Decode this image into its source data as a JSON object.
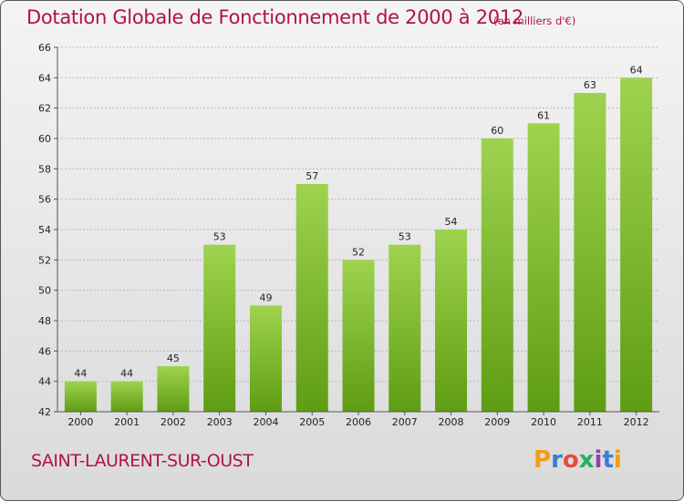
{
  "title": "Dotation Globale de Fonctionnement de 2000 à 2012",
  "unit_note": "(en milliers d'€)",
  "commune": "SAINT-LAURENT-SUR-OUST",
  "brand": {
    "letters": [
      "P",
      "r",
      "o",
      "x",
      "i",
      "t",
      "i"
    ],
    "colors": [
      "#f39c12",
      "#3a7fd0",
      "#e74c3c",
      "#27ae60",
      "#8e44ad",
      "#3a7fd0",
      "#f39c12"
    ]
  },
  "colors": {
    "title": "#b0124a",
    "bar_light": "#9fd34f",
    "bar_dark": "#5e9d13",
    "grid": "#b8b8b8"
  },
  "chart_data": {
    "type": "bar",
    "title": "Dotation Globale de Fonctionnement de 2000 à 2012",
    "subtitle": "(en milliers d'€)",
    "xlabel": "",
    "ylabel": "",
    "categories": [
      "2000",
      "2001",
      "2002",
      "2003",
      "2004",
      "2005",
      "2006",
      "2007",
      "2008",
      "2009",
      "2010",
      "2011",
      "2012"
    ],
    "values": [
      44,
      44,
      45,
      53,
      49,
      57,
      52,
      53,
      54,
      60,
      61,
      63,
      64
    ],
    "ylim": [
      42,
      66
    ],
    "yticks": [
      42,
      44,
      46,
      48,
      50,
      52,
      54,
      56,
      58,
      60,
      62,
      64,
      66
    ],
    "grid": true,
    "data_labels": true
  }
}
